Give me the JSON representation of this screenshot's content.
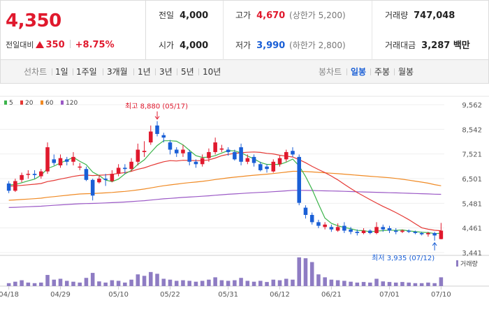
{
  "quote": {
    "price": "4,350",
    "change_label": "전일대비",
    "change_value": "350",
    "change_pct": "+8.75%",
    "fields": {
      "prev_close": {
        "label": "전일",
        "value": "4,000"
      },
      "open": {
        "label": "시가",
        "value": "4,000"
      },
      "high": {
        "label": "고가",
        "value": "4,670",
        "sub": "(상한가 5,200)"
      },
      "low": {
        "label": "저가",
        "value": "3,990",
        "sub": "(하한가 2,800)"
      },
      "volume": {
        "label": "거래량",
        "value": "747,048"
      },
      "amount": {
        "label": "거래대금",
        "value": "3,287 백만"
      }
    }
  },
  "toolbar": {
    "line_label": "선차트",
    "line_ranges": [
      "1일",
      "1주일",
      "3개월",
      "1년",
      "3년",
      "5년",
      "10년"
    ],
    "candle_label": "봉차트",
    "candle_ranges": [
      "일봉",
      "주봉",
      "월봉"
    ],
    "active_candle": "일봉"
  },
  "colors": {
    "up": "#e0192d",
    "down": "#1a5fd6",
    "ma5": "#3cb44b",
    "ma20": "#e53935",
    "ma60": "#f08a24",
    "ma120": "#9b59c6",
    "volume": "#8e7cc3"
  },
  "chart_data": {
    "type": "candlestick",
    "legend": [
      {
        "name": "5",
        "color": "#3cb44b"
      },
      {
        "name": "20",
        "color": "#e53935"
      },
      {
        "name": "60",
        "color": "#f08a24"
      },
      {
        "name": "120",
        "color": "#9b59c6"
      }
    ],
    "y_ticks": [
      "9,562",
      "8,542",
      "7,521",
      "6,501",
      "5,481",
      "4,461",
      "3,441"
    ],
    "ylim": [
      3441,
      9562
    ],
    "x_ticks": [
      "04/18",
      "04/29",
      "05/10",
      "05/22",
      "05/31",
      "06/12",
      "06/21",
      "07/01",
      "07/10"
    ],
    "high_annotation": "최고 8,880 (05/17)",
    "low_annotation": "최저 3,935 (07/12)",
    "volume_legend": "거래량",
    "candles": [
      [
        6300,
        6000,
        6400,
        5900
      ],
      [
        6000,
        6400,
        6500,
        5950
      ],
      [
        6450,
        6650,
        6750,
        6350
      ],
      [
        6700,
        6700,
        6850,
        6500
      ],
      [
        6700,
        6650,
        6850,
        6500
      ],
      [
        6600,
        6800,
        6900,
        6500
      ],
      [
        6800,
        7800,
        8000,
        6700
      ],
      [
        7300,
        7150,
        7500,
        7050
      ],
      [
        7050,
        7350,
        7500,
        6950
      ],
      [
        7300,
        7200,
        7400,
        7050
      ],
      [
        7200,
        7400,
        7600,
        7050
      ],
      [
        7000,
        7000,
        7150,
        6850
      ],
      [
        6900,
        6450,
        7000,
        6400
      ],
      [
        6450,
        5800,
        6500,
        5600
      ],
      [
        6350,
        6500,
        6650,
        6300
      ],
      [
        6500,
        6450,
        6700,
        6200
      ],
      [
        6400,
        6700,
        6850,
        6350
      ],
      [
        6700,
        6950,
        7100,
        6600
      ],
      [
        6950,
        6900,
        7100,
        6700
      ],
      [
        6900,
        7200,
        7350,
        6800
      ],
      [
        7200,
        7700,
        7950,
        7050
      ],
      [
        7600,
        7650,
        8050,
        7400
      ],
      [
        8000,
        8450,
        8700,
        7900
      ],
      [
        8700,
        8350,
        8880,
        8250
      ],
      [
        8300,
        8200,
        8400,
        8000
      ],
      [
        8000,
        7700,
        8100,
        7500
      ],
      [
        7700,
        7550,
        7800,
        7400
      ],
      [
        7550,
        7700,
        7900,
        7400
      ],
      [
        7600,
        7200,
        7700,
        7050
      ],
      [
        7200,
        7100,
        7300,
        6950
      ],
      [
        7100,
        7350,
        7500,
        7000
      ],
      [
        7350,
        7600,
        7750,
        7200
      ],
      [
        7600,
        8000,
        8200,
        7500
      ],
      [
        7700,
        7750,
        7900,
        7600
      ],
      [
        7700,
        7600,
        7800,
        7450
      ],
      [
        7600,
        7300,
        7700,
        7250
      ],
      [
        7800,
        7200,
        7950,
        7050
      ],
      [
        7200,
        7350,
        7500,
        7100
      ],
      [
        7400,
        7150,
        7500,
        7000
      ],
      [
        7100,
        6850,
        7200,
        6800
      ],
      [
        7000,
        6900,
        7100,
        6750
      ],
      [
        6800,
        7200,
        7300,
        6750
      ],
      [
        7100,
        7350,
        7450,
        7000
      ],
      [
        7300,
        7600,
        7700,
        7200
      ],
      [
        7650,
        7500,
        7800,
        7400
      ],
      [
        7400,
        5500,
        7500,
        5400
      ],
      [
        5300,
        5000,
        5400,
        4850
      ],
      [
        5000,
        4700,
        5100,
        4600
      ],
      [
        4700,
        4550,
        4800,
        4450
      ],
      [
        4500,
        4600,
        4700,
        4400
      ],
      [
        4500,
        4400,
        4600,
        4300
      ],
      [
        4350,
        4500,
        4650,
        4300
      ],
      [
        4550,
        4350,
        4700,
        4250
      ],
      [
        4400,
        4300,
        4500,
        4200
      ],
      [
        4300,
        4250,
        4400,
        4150
      ],
      [
        4250,
        4350,
        4450,
        4200
      ],
      [
        4350,
        4250,
        4400,
        4200
      ],
      [
        4250,
        4500,
        4700,
        4200
      ],
      [
        4500,
        4400,
        4600,
        4300
      ],
      [
        4450,
        4350,
        4550,
        4250
      ],
      [
        4350,
        4300,
        4450,
        4200
      ],
      [
        4300,
        4350,
        4400,
        4250
      ],
      [
        4350,
        4300,
        4400,
        4250
      ],
      [
        4300,
        4250,
        4350,
        4200
      ],
      [
        4250,
        4200,
        4300,
        4150
      ],
      [
        4200,
        4250,
        4300,
        4100
      ],
      [
        4250,
        4150,
        4300,
        3935
      ],
      [
        4000,
        4350,
        4670,
        3990
      ]
    ],
    "volume": [
      0.1,
      0.15,
      0.2,
      0.12,
      0.1,
      0.12,
      0.38,
      0.22,
      0.25,
      0.18,
      0.15,
      0.12,
      0.28,
      0.45,
      0.16,
      0.12,
      0.2,
      0.18,
      0.12,
      0.22,
      0.4,
      0.35,
      0.48,
      0.42,
      0.25,
      0.22,
      0.18,
      0.2,
      0.18,
      0.15,
      0.18,
      0.22,
      0.3,
      0.2,
      0.18,
      0.2,
      0.28,
      0.18,
      0.15,
      0.18,
      0.14,
      0.22,
      0.2,
      0.25,
      0.22,
      0.98,
      0.95,
      0.82,
      0.4,
      0.3,
      0.22,
      0.2,
      0.18,
      0.15,
      0.12,
      0.14,
      0.12,
      0.25,
      0.16,
      0.14,
      0.12,
      0.14,
      0.12,
      0.1,
      0.1,
      0.12,
      0.1,
      0.3
    ]
  }
}
